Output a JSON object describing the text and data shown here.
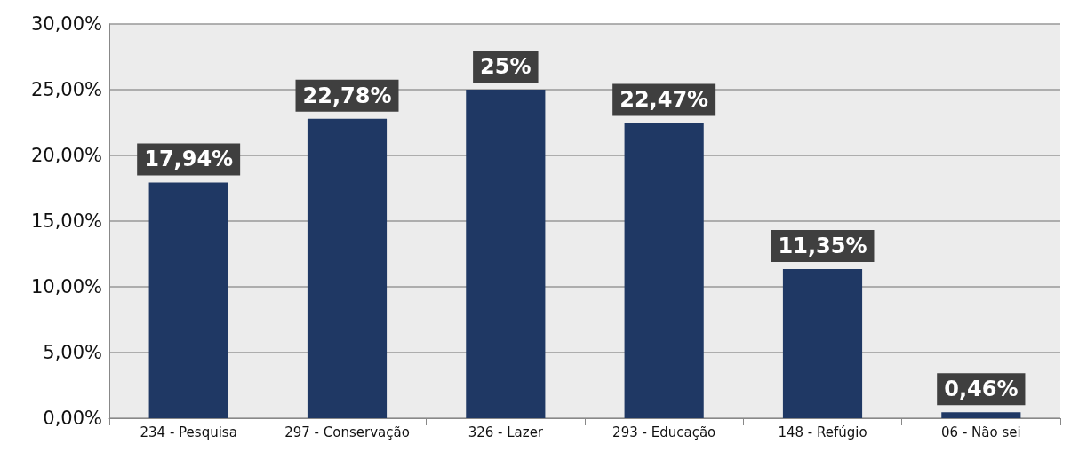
{
  "chart_data": {
    "type": "bar",
    "categories": [
      "234 - Pesquisa",
      "297 - Conservação",
      "326 - Lazer",
      "293 - Educação",
      "148 - Refúgio",
      "06 - Não sei"
    ],
    "values": [
      17.94,
      22.78,
      25,
      22.47,
      11.35,
      0.46
    ],
    "value_labels": [
      "17,94%",
      "22,78%",
      "25%",
      "22,47%",
      "11,35%",
      "0,46%"
    ],
    "color": "#1f3864",
    "ylim": [
      0,
      30
    ],
    "yticks": [
      {
        "value": 0,
        "label": "0,00%"
      },
      {
        "value": 5,
        "label": "5,00%"
      },
      {
        "value": 10,
        "label": "10,00%"
      },
      {
        "value": 15,
        "label": "15,00%"
      },
      {
        "value": 20,
        "label": "20,00%"
      },
      {
        "value": 25,
        "label": "25,00%"
      },
      {
        "value": 30,
        "label": "30,00%"
      }
    ],
    "grid": "y"
  }
}
